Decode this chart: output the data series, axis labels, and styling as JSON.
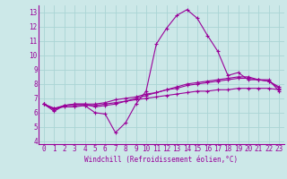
{
  "xlabel": "Windchill (Refroidissement éolien,°C)",
  "background_color": "#cce8e8",
  "grid_color": "#aad4d4",
  "line_color": "#990099",
  "x_values": [
    0,
    1,
    2,
    3,
    4,
    5,
    6,
    7,
    8,
    9,
    10,
    11,
    12,
    13,
    14,
    15,
    16,
    17,
    18,
    19,
    20,
    21,
    22,
    23
  ],
  "line1_y": [
    6.6,
    6.1,
    6.5,
    6.5,
    6.5,
    6.0,
    5.9,
    4.6,
    5.3,
    6.6,
    7.5,
    10.8,
    11.9,
    12.8,
    13.2,
    12.6,
    11.4,
    10.3,
    8.6,
    8.8,
    8.3,
    8.3,
    8.3,
    7.5
  ],
  "line2_y": [
    6.6,
    6.2,
    6.5,
    6.6,
    6.6,
    6.4,
    6.5,
    6.6,
    6.8,
    7.0,
    7.2,
    7.4,
    7.6,
    7.8,
    8.0,
    8.1,
    8.2,
    8.3,
    8.4,
    8.5,
    8.5,
    8.3,
    8.2,
    7.7
  ],
  "line3_y": [
    6.6,
    6.3,
    6.5,
    6.6,
    6.6,
    6.6,
    6.7,
    6.9,
    7.0,
    7.1,
    7.3,
    7.4,
    7.6,
    7.7,
    7.9,
    8.0,
    8.1,
    8.2,
    8.3,
    8.4,
    8.4,
    8.3,
    8.2,
    7.8
  ],
  "line4_y": [
    6.6,
    6.3,
    6.4,
    6.4,
    6.5,
    6.5,
    6.6,
    6.7,
    6.8,
    6.9,
    7.0,
    7.1,
    7.2,
    7.3,
    7.4,
    7.5,
    7.5,
    7.6,
    7.6,
    7.7,
    7.7,
    7.7,
    7.7,
    7.6
  ],
  "ylim": [
    3.8,
    13.5
  ],
  "xlim": [
    -0.5,
    23.5
  ],
  "yticks": [
    4,
    5,
    6,
    7,
    8,
    9,
    10,
    11,
    12,
    13
  ],
  "xticks": [
    0,
    1,
    2,
    3,
    4,
    5,
    6,
    7,
    8,
    9,
    10,
    11,
    12,
    13,
    14,
    15,
    16,
    17,
    18,
    19,
    20,
    21,
    22,
    23
  ],
  "tick_fontsize": 5.5,
  "xlabel_fontsize": 5.5
}
